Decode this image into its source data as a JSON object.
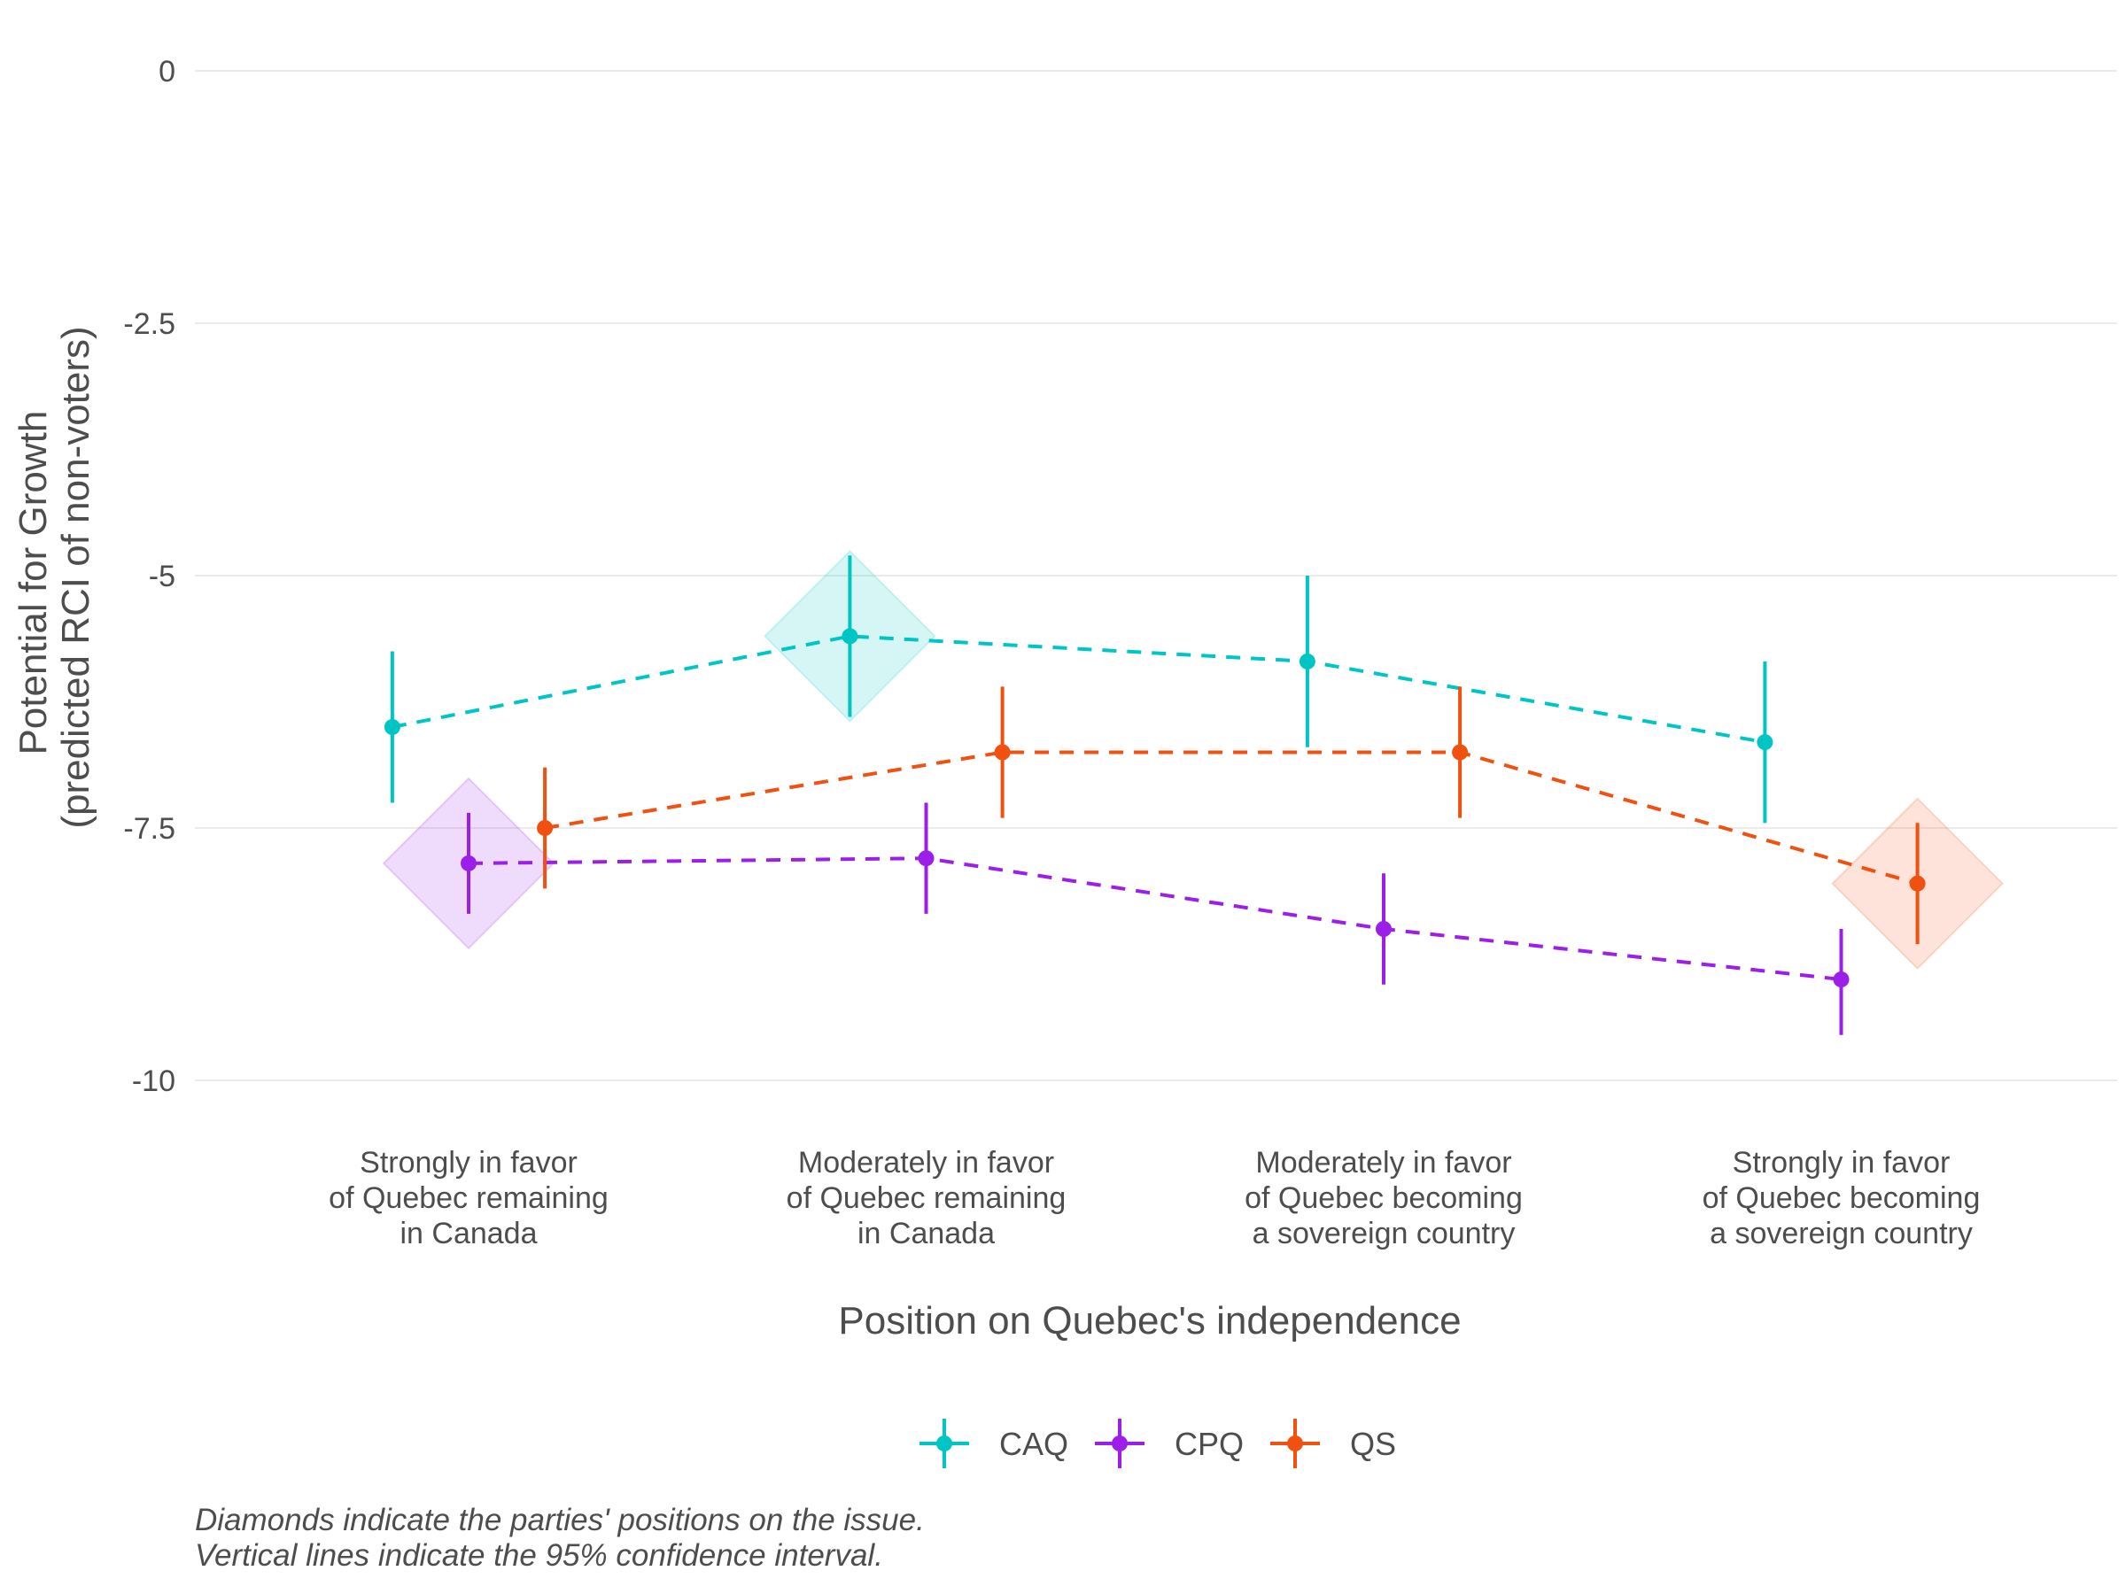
{
  "chart_data": {
    "type": "line",
    "ylabel": [
      "Potential for Growth",
      "(predicted RCI of non-voters)"
    ],
    "xlabel": "Position on Quebec's independence",
    "ylim": [
      -10,
      0
    ],
    "yticks": [
      0,
      -2.5,
      -5,
      -7.5,
      -10
    ],
    "ytick_labels": [
      "0",
      "-2.5",
      "-5",
      "-7.5",
      "-10"
    ],
    "categories": [
      [
        "Strongly in favor",
        "of Quebec remaining",
        "in Canada"
      ],
      [
        "Moderately in favor",
        "of Quebec remaining",
        "in Canada"
      ],
      [
        "Moderately in favor",
        "of Quebec becoming",
        "a sovereign country"
      ],
      [
        "Strongly in favor",
        "of Quebec becoming",
        "a sovereign country"
      ]
    ],
    "grid": true,
    "legend_position": "bottom",
    "series": [
      {
        "name": "CAQ",
        "color": "#00c5c5",
        "dodge": -0.1667,
        "values": [
          -6.5,
          -5.6,
          -5.85,
          -6.65
        ],
        "ci_low": [
          -7.25,
          -6.4,
          -6.7,
          -7.45
        ],
        "ci_high": [
          -5.75,
          -4.8,
          -5.0,
          -5.85
        ],
        "diamond_index": 1
      },
      {
        "name": "CPQ",
        "color": "#9b1fe8",
        "dodge": 0,
        "values": [
          -7.85,
          -7.8,
          -8.5,
          -9.0
        ],
        "ci_low": [
          -8.35,
          -8.35,
          -9.05,
          -9.55
        ],
        "ci_high": [
          -7.35,
          -7.25,
          -7.95,
          -8.5
        ],
        "diamond_index": 0
      },
      {
        "name": "QS",
        "color": "#f05010",
        "dodge": 0.1667,
        "values": [
          -7.5,
          -6.75,
          -6.75,
          -8.05
        ],
        "ci_low": [
          -8.1,
          -7.4,
          -7.4,
          -8.65
        ],
        "ci_high": [
          -6.9,
          -6.1,
          -6.1,
          -7.45
        ],
        "diamond_index": 3
      }
    ],
    "caption": [
      "Diamonds indicate the parties' positions on the issue.",
      "Vertical lines indicate the 95% confidence interval."
    ]
  }
}
